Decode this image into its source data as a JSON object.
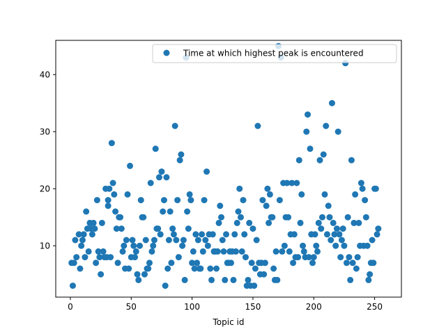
{
  "chart_data": {
    "type": "scatter",
    "title": "",
    "xlabel": "Topic id",
    "ylabel": "",
    "xlim": [
      -12,
      272
    ],
    "ylim": [
      1.0,
      46.0
    ],
    "xticks": [
      0,
      50,
      100,
      150,
      200,
      250
    ],
    "yticks": [
      10,
      20,
      30,
      40
    ],
    "grid": false,
    "legend_position": "top-right",
    "series": [
      {
        "name": "Time at which highest peak is encountered",
        "color": "#1f77b4",
        "points": [
          [
            1,
            7
          ],
          [
            2,
            3
          ],
          [
            3,
            7
          ],
          [
            4,
            11
          ],
          [
            5,
            8
          ],
          [
            7,
            12
          ],
          [
            8,
            6
          ],
          [
            9,
            10
          ],
          [
            10,
            11
          ],
          [
            11,
            12
          ],
          [
            12,
            8
          ],
          [
            13,
            16
          ],
          [
            14,
            13
          ],
          [
            15,
            9
          ],
          [
            16,
            14
          ],
          [
            17,
            13
          ],
          [
            18,
            12
          ],
          [
            19,
            14
          ],
          [
            20,
            13
          ],
          [
            21,
            7
          ],
          [
            22,
            18
          ],
          [
            23,
            9
          ],
          [
            24,
            8
          ],
          [
            25,
            5
          ],
          [
            26,
            14
          ],
          [
            27,
            9
          ],
          [
            28,
            8
          ],
          [
            29,
            20
          ],
          [
            30,
            8
          ],
          [
            31,
            17
          ],
          [
            31,
            18
          ],
          [
            32,
            20
          ],
          [
            33,
            8
          ],
          [
            34,
            28
          ],
          [
            35,
            21
          ],
          [
            36,
            19
          ],
          [
            37,
            16
          ],
          [
            38,
            13
          ],
          [
            39,
            7
          ],
          [
            40,
            15
          ],
          [
            41,
            15
          ],
          [
            42,
            13
          ],
          [
            43,
            9
          ],
          [
            44,
            10
          ],
          [
            45,
            6
          ],
          [
            46,
            11
          ],
          [
            47,
            19
          ],
          [
            48,
            6
          ],
          [
            49,
            24
          ],
          [
            50,
            8
          ],
          [
            51,
            11
          ],
          [
            52,
            10
          ],
          [
            53,
            8
          ],
          [
            54,
            9
          ],
          [
            55,
            5
          ],
          [
            56,
            4
          ],
          [
            57,
            10
          ],
          [
            58,
            18
          ],
          [
            59,
            15
          ],
          [
            60,
            15
          ],
          [
            61,
            5
          ],
          [
            62,
            11
          ],
          [
            63,
            6
          ],
          [
            64,
            6
          ],
          [
            65,
            7
          ],
          [
            66,
            21
          ],
          [
            67,
            9
          ],
          [
            68,
            10
          ],
          [
            69,
            11
          ],
          [
            70,
            27
          ],
          [
            71,
            13
          ],
          [
            72,
            13
          ],
          [
            73,
            22
          ],
          [
            74,
            12
          ],
          [
            75,
            23
          ],
          [
            76,
            16
          ],
          [
            77,
            18
          ],
          [
            78,
            3
          ],
          [
            79,
            22
          ],
          [
            80,
            6
          ],
          [
            81,
            11
          ],
          [
            82,
            16
          ],
          [
            83,
            7
          ],
          [
            84,
            13
          ],
          [
            85,
            12
          ],
          [
            86,
            31
          ],
          [
            87,
            11
          ],
          [
            88,
            18
          ],
          [
            89,
            8
          ],
          [
            90,
            25
          ],
          [
            91,
            26
          ],
          [
            92,
            10
          ],
          [
            93,
            11
          ],
          [
            94,
            4
          ],
          [
            95,
            43
          ],
          [
            96,
            16
          ],
          [
            97,
            13
          ],
          [
            98,
            19
          ],
          [
            99,
            18
          ],
          [
            100,
            7
          ],
          [
            101,
            9
          ],
          [
            102,
            6
          ],
          [
            103,
            12
          ],
          [
            104,
            7
          ],
          [
            105,
            11
          ],
          [
            106,
            6
          ],
          [
            107,
            6
          ],
          [
            108,
            12
          ],
          [
            109,
            9
          ],
          [
            110,
            18
          ],
          [
            111,
            11
          ],
          [
            112,
            23
          ],
          [
            113,
            10
          ],
          [
            114,
            12
          ],
          [
            115,
            6
          ],
          [
            116,
            4
          ],
          [
            117,
            12
          ],
          [
            118,
            9
          ],
          [
            119,
            9
          ],
          [
            120,
            6
          ],
          [
            121,
            9
          ],
          [
            122,
            14
          ],
          [
            123,
            17
          ],
          [
            124,
            15
          ],
          [
            125,
            11
          ],
          [
            126,
            9
          ],
          [
            127,
            4
          ],
          [
            128,
            12
          ],
          [
            129,
            7
          ],
          [
            130,
            7
          ],
          [
            131,
            9
          ],
          [
            132,
            7
          ],
          [
            133,
            9
          ],
          [
            134,
            4
          ],
          [
            135,
            12
          ],
          [
            136,
            9
          ],
          [
            137,
            14
          ],
          [
            138,
            16
          ],
          [
            139,
            20
          ],
          [
            140,
            15
          ],
          [
            141,
            9
          ],
          [
            142,
            18
          ],
          [
            143,
            12
          ],
          [
            144,
            8
          ],
          [
            145,
            3
          ],
          [
            146,
            4
          ],
          [
            147,
            14
          ],
          [
            148,
            3
          ],
          [
            149,
            7
          ],
          [
            150,
            13
          ],
          [
            151,
            3
          ],
          [
            152,
            6
          ],
          [
            153,
            11
          ],
          [
            154,
            31
          ],
          [
            155,
            7
          ],
          [
            156,
            5
          ],
          [
            157,
            7
          ],
          [
            158,
            18
          ],
          [
            159,
            5
          ],
          [
            160,
            7
          ],
          [
            161,
            17
          ],
          [
            162,
            20
          ],
          [
            163,
            14
          ],
          [
            164,
            19
          ],
          [
            165,
            15
          ],
          [
            166,
            15
          ],
          [
            167,
            6
          ],
          [
            168,
            4
          ],
          [
            169,
            9
          ],
          [
            170,
            4
          ],
          [
            171,
            45
          ],
          [
            172,
            18
          ],
          [
            173,
            43
          ],
          [
            174,
            9
          ],
          [
            175,
            21
          ],
          [
            176,
            10
          ],
          [
            177,
            15
          ],
          [
            178,
            21
          ],
          [
            179,
            15
          ],
          [
            180,
            9
          ],
          [
            181,
            12
          ],
          [
            182,
            21
          ],
          [
            183,
            7
          ],
          [
            184,
            12
          ],
          [
            185,
            8
          ],
          [
            186,
            21
          ],
          [
            187,
            8
          ],
          [
            188,
            25
          ],
          [
            189,
            14
          ],
          [
            190,
            19
          ],
          [
            191,
            10
          ],
          [
            192,
            9
          ],
          [
            193,
            8
          ],
          [
            194,
            30
          ],
          [
            195,
            33
          ],
          [
            196,
            8
          ],
          [
            197,
            27
          ],
          [
            198,
            12
          ],
          [
            199,
            7
          ],
          [
            200,
            8
          ],
          [
            201,
            12
          ],
          [
            202,
            10
          ],
          [
            203,
            9
          ],
          [
            204,
            14
          ],
          [
            205,
            25
          ],
          [
            206,
            13
          ],
          [
            207,
            15
          ],
          [
            208,
            26
          ],
          [
            209,
            19
          ],
          [
            210,
            31
          ],
          [
            211,
            12
          ],
          [
            212,
            17
          ],
          [
            213,
            15
          ],
          [
            214,
            11
          ],
          [
            215,
            35
          ],
          [
            216,
            14
          ],
          [
            217,
            12
          ],
          [
            218,
            10
          ],
          [
            219,
            13
          ],
          [
            220,
            30
          ],
          [
            221,
            12
          ],
          [
            222,
            8
          ],
          [
            223,
            11
          ],
          [
            224,
            13
          ],
          [
            225,
            10
          ],
          [
            226,
            42
          ],
          [
            227,
            7
          ],
          [
            228,
            15
          ],
          [
            229,
            8
          ],
          [
            230,
            4
          ],
          [
            231,
            25
          ],
          [
            232,
            7
          ],
          [
            233,
            14
          ],
          [
            234,
            19
          ],
          [
            235,
            6
          ],
          [
            236,
            8
          ],
          [
            237,
            14
          ],
          [
            238,
            10
          ],
          [
            239,
            21
          ],
          [
            240,
            20
          ],
          [
            241,
            10
          ],
          [
            242,
            18
          ],
          [
            243,
            15
          ],
          [
            244,
            10
          ],
          [
            245,
            4
          ],
          [
            246,
            5
          ],
          [
            247,
            7
          ],
          [
            248,
            11
          ],
          [
            249,
            7
          ],
          [
            250,
            20
          ],
          [
            251,
            20
          ],
          [
            252,
            12
          ],
          [
            253,
            13
          ]
        ]
      }
    ]
  }
}
